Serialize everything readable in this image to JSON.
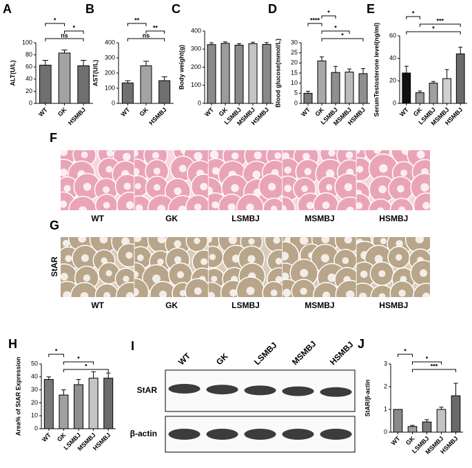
{
  "chart_data": [
    {
      "panel": "A",
      "type": "bar",
      "ylabel": "ALT(U/L)",
      "categories": [
        "WT",
        "GK",
        "HSMBJ"
      ],
      "values": [
        63,
        83,
        62
      ],
      "errors": [
        8,
        5,
        9
      ],
      "colors": [
        "#707070",
        "#a3a3a3",
        "#707070"
      ],
      "ylim": [
        0,
        100
      ],
      "yticks": [
        0,
        20,
        40,
        60,
        80,
        100
      ],
      "significance": [
        {
          "between": [
            "WT",
            "GK"
          ],
          "label": "*"
        },
        {
          "between": [
            "GK",
            "HSMBJ"
          ],
          "label": "*"
        },
        {
          "between": [
            "WT",
            "HSMBJ"
          ],
          "label": "ns"
        }
      ]
    },
    {
      "panel": "B",
      "type": "bar",
      "ylabel": "AST(U/L)",
      "categories": [
        "WT",
        "GK",
        "HSMBJ"
      ],
      "values": [
        135,
        248,
        150
      ],
      "errors": [
        15,
        30,
        25
      ],
      "colors": [
        "#707070",
        "#a3a3a3",
        "#707070"
      ],
      "ylim": [
        0,
        400
      ],
      "yticks": [
        0,
        100,
        200,
        300,
        400
      ],
      "significance": [
        {
          "between": [
            "WT",
            "GK"
          ],
          "label": "**"
        },
        {
          "between": [
            "GK",
            "HSMBJ"
          ],
          "label": "**"
        },
        {
          "between": [
            "WT",
            "HSMBJ"
          ],
          "label": "ns"
        }
      ]
    },
    {
      "panel": "C",
      "type": "bar",
      "ylabel": "Body weight(g)",
      "categories": [
        "WT",
        "GK",
        "LSMBJ",
        "MSMBJ",
        "HSMBJ"
      ],
      "values": [
        325,
        332,
        322,
        330,
        326
      ],
      "errors": [
        10,
        8,
        8,
        8,
        10
      ],
      "colors": [
        "#8a8a8a",
        "#9c9c9c",
        "#8a8a8a",
        "#c4c4c4",
        "#8a8a8a"
      ],
      "ylim": [
        0,
        400
      ],
      "yticks": [
        0,
        100,
        200,
        300,
        400
      ],
      "significance": []
    },
    {
      "panel": "D",
      "type": "bar",
      "ylabel": "Blood glucose(mmol/L)",
      "categories": [
        "WT",
        "GK",
        "LSMBJ",
        "MSMBJ",
        "HSMBJ"
      ],
      "values": [
        5,
        21,
        15.3,
        15.5,
        14.7
      ],
      "errors": [
        1,
        2,
        3,
        1.5,
        2.5
      ],
      "colors": [
        "#7a7a7a",
        "#a8a8a8",
        "#8f8f8f",
        "#bcbcbc",
        "#8f8f8f"
      ],
      "ylim": [
        0,
        30
      ],
      "yticks": [
        0,
        5,
        10,
        15,
        20,
        25,
        30
      ],
      "significance": [
        {
          "between": [
            "GK",
            "LSMBJ"
          ],
          "label": "*"
        },
        {
          "between": [
            "WT",
            "GK"
          ],
          "label": "****"
        },
        {
          "between": [
            "GK",
            "MSMBJ"
          ],
          "label": "*"
        },
        {
          "between": [
            "GK",
            "HSMBJ"
          ],
          "label": "*"
        }
      ]
    },
    {
      "panel": "E",
      "type": "bar",
      "ylabel": "SerumTestosterone level(ng/ml)",
      "categories": [
        "WT",
        "GK",
        "LSMBJ",
        "MSMBJ",
        "HSMBJ"
      ],
      "values": [
        27,
        9.5,
        18,
        22,
        44
      ],
      "errors": [
        6,
        1.5,
        1.5,
        8,
        6
      ],
      "colors": [
        "#111111",
        "#9a9a9a",
        "#a0a0a0",
        "#d0d0d0",
        "#6a6a6a"
      ],
      "ylim": [
        0,
        60
      ],
      "yticks": [
        0,
        20,
        40,
        60
      ],
      "significance": [
        {
          "between": [
            "WT",
            "GK"
          ],
          "label": "*"
        },
        {
          "between": [
            "GK",
            "HSMBJ"
          ],
          "label": "***"
        },
        {
          "between": [
            "WT",
            "HSMBJ"
          ],
          "label": "*"
        }
      ]
    },
    {
      "panel": "H",
      "type": "bar",
      "ylabel": "Area% of StAR Expression",
      "categories": [
        "WT",
        "GK",
        "LSMBJ",
        "MSMBJ",
        "HSMBJ"
      ],
      "values": [
        38,
        26,
        34,
        39,
        39
      ],
      "errors": [
        2,
        4,
        4,
        5,
        4
      ],
      "colors": [
        "#7a7a7a",
        "#a0a0a0",
        "#8f8f8f",
        "#c4c4c4",
        "#6a6a6a"
      ],
      "ylim": [
        0,
        50
      ],
      "yticks": [
        0,
        10,
        20,
        30,
        40,
        50
      ],
      "significance": [
        {
          "between": [
            "WT",
            "GK"
          ],
          "label": "*"
        },
        {
          "between": [
            "GK",
            "MSMBJ"
          ],
          "label": "*"
        },
        {
          "between": [
            "GK",
            "HSMBJ"
          ],
          "label": "*"
        }
      ]
    },
    {
      "panel": "J",
      "type": "bar",
      "ylabel": "StAR/β-actin",
      "categories": [
        "WT",
        "GK",
        "LSMBJ",
        "MSMBJ",
        "HSMBJ"
      ],
      "values": [
        1.0,
        0.25,
        0.45,
        1.0,
        1.6
      ],
      "errors": [
        0,
        0.05,
        0.1,
        0.1,
        0.55
      ],
      "colors": [
        "#8a8a8a",
        "#a0a0a0",
        "#7a7a7a",
        "#c4c4c4",
        "#6a6a6a"
      ],
      "ylim": [
        0,
        3
      ],
      "yticks": [
        0,
        1,
        2,
        3
      ],
      "significance": [
        {
          "between": [
            "WT",
            "GK"
          ],
          "label": "*"
        },
        {
          "between": [
            "GK",
            "MSMBJ"
          ],
          "label": "*"
        },
        {
          "between": [
            "GK",
            "HSMBJ"
          ],
          "label": "***"
        }
      ]
    }
  ],
  "panel_F": {
    "label": "F",
    "groups": [
      "WT",
      "GK",
      "LSMBJ",
      "MSMBJ",
      "HSMBJ"
    ]
  },
  "panel_G": {
    "label": "G",
    "stain": "StAR",
    "groups": [
      "WT",
      "GK",
      "LSMBJ",
      "MSMBJ",
      "HSMBJ"
    ]
  },
  "panel_I": {
    "label": "I",
    "lanes": [
      "WT",
      "GK",
      "LSMBJ",
      "MSMBJ",
      "HSMBJ"
    ],
    "rows": [
      "StAR",
      "β-actin"
    ]
  }
}
